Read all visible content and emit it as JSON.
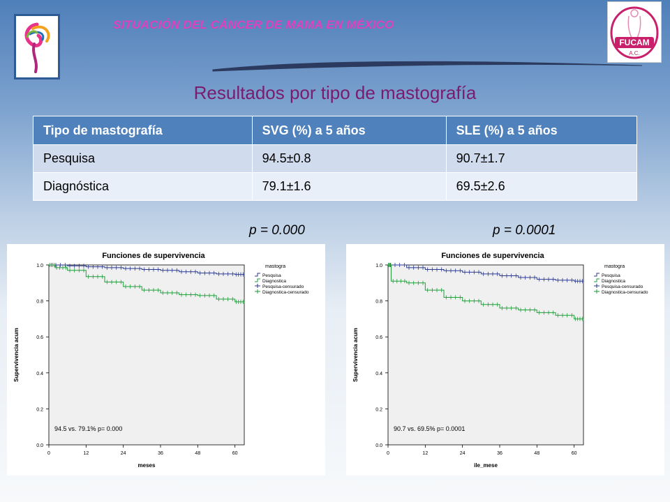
{
  "header": {
    "title": "SITUACIÓN DEL CÁNCER DE MAMA EN MÉXICO"
  },
  "logos": {
    "left": "ribbon-figure-logo",
    "right": {
      "brand": "FUCAM",
      "suffix": "A.C."
    }
  },
  "subtitle": "Resultados por tipo de mastografía",
  "table": {
    "headers": [
      "Tipo de mastografía",
      "SVG (%) a 5 años",
      "SLE (%) a 5 años"
    ],
    "rows": [
      [
        "Pesquisa",
        "94.5±0.8",
        "90.7±1.7"
      ],
      [
        "Diagnóstica",
        "79.1±1.6",
        "69.5±2.6"
      ]
    ]
  },
  "pvalues": {
    "left": "p = 0.000",
    "right": "p = 0.0001"
  },
  "colors": {
    "pesquisa": "#2b3a8f",
    "diagnostica": "#1e9e3a",
    "accent": "#e03fbf",
    "subtitle": "#7a1c6e",
    "table_header": "#4f81bd"
  },
  "chart_data": [
    {
      "type": "line",
      "title": "Funciones de supervivencia",
      "xlabel": "meses",
      "ylabel": "Supervivencia acum",
      "xlim": [
        0,
        63
      ],
      "ylim": [
        0,
        1.0
      ],
      "xticks": [
        0,
        12,
        24,
        36,
        48,
        60
      ],
      "yticks": [
        "0.0",
        "0.2",
        "0.4",
        "0.6",
        "0.8",
        "1.0"
      ],
      "legend_title": "mastogra",
      "legend_items": [
        "Pesquisa",
        "Diagnostica",
        "Pesquisa-censurado",
        "Diagnostica-censurado"
      ],
      "legend_position": "right",
      "annotation": "94.5 vs. 79.1%  p= 0.000",
      "series": [
        {
          "name": "Pesquisa",
          "color": "#2b3a8f",
          "x": [
            0,
            6,
            12,
            18,
            24,
            30,
            36,
            42,
            48,
            54,
            60,
            63
          ],
          "y": [
            1.0,
            0.995,
            0.99,
            0.985,
            0.98,
            0.975,
            0.97,
            0.962,
            0.955,
            0.95,
            0.947,
            0.945
          ]
        },
        {
          "name": "Diagnostica",
          "color": "#1e9e3a",
          "x": [
            0,
            2,
            6,
            12,
            18,
            24,
            30,
            36,
            42,
            48,
            54,
            60,
            63
          ],
          "y": [
            1.0,
            0.985,
            0.97,
            0.935,
            0.905,
            0.88,
            0.86,
            0.845,
            0.835,
            0.83,
            0.81,
            0.795,
            0.79
          ]
        }
      ]
    },
    {
      "type": "line",
      "title": "Funciones de supervivencia",
      "xlabel": "ile_mese",
      "ylabel": "Supervivencia acum",
      "xlim": [
        0,
        63
      ],
      "ylim": [
        0,
        1.0
      ],
      "xticks": [
        0,
        12,
        24,
        36,
        48,
        60
      ],
      "yticks": [
        "0.0",
        "0.2",
        "0.4",
        "0.6",
        "0.8",
        "1.0"
      ],
      "legend_title": "mastogra",
      "legend_items": [
        "Pesquisa",
        "Diagnostica",
        "Pesquisa-censurado",
        "Diagnostica-censurado"
      ],
      "legend_position": "right",
      "annotation": "90.7 vs. 69.5% p= 0.0001",
      "series": [
        {
          "name": "Pesquisa",
          "color": "#2b3a8f",
          "x": [
            0,
            6,
            12,
            18,
            24,
            30,
            36,
            42,
            48,
            54,
            60,
            63
          ],
          "y": [
            1.0,
            0.985,
            0.975,
            0.968,
            0.96,
            0.95,
            0.94,
            0.93,
            0.92,
            0.915,
            0.91,
            0.907
          ]
        },
        {
          "name": "Diagnostica",
          "color": "#1e9e3a",
          "x": [
            0,
            1,
            6,
            12,
            18,
            24,
            30,
            36,
            42,
            48,
            54,
            60,
            63
          ],
          "y": [
            1.0,
            0.91,
            0.9,
            0.86,
            0.82,
            0.8,
            0.78,
            0.76,
            0.75,
            0.735,
            0.72,
            0.7,
            0.695
          ]
        }
      ]
    }
  ]
}
